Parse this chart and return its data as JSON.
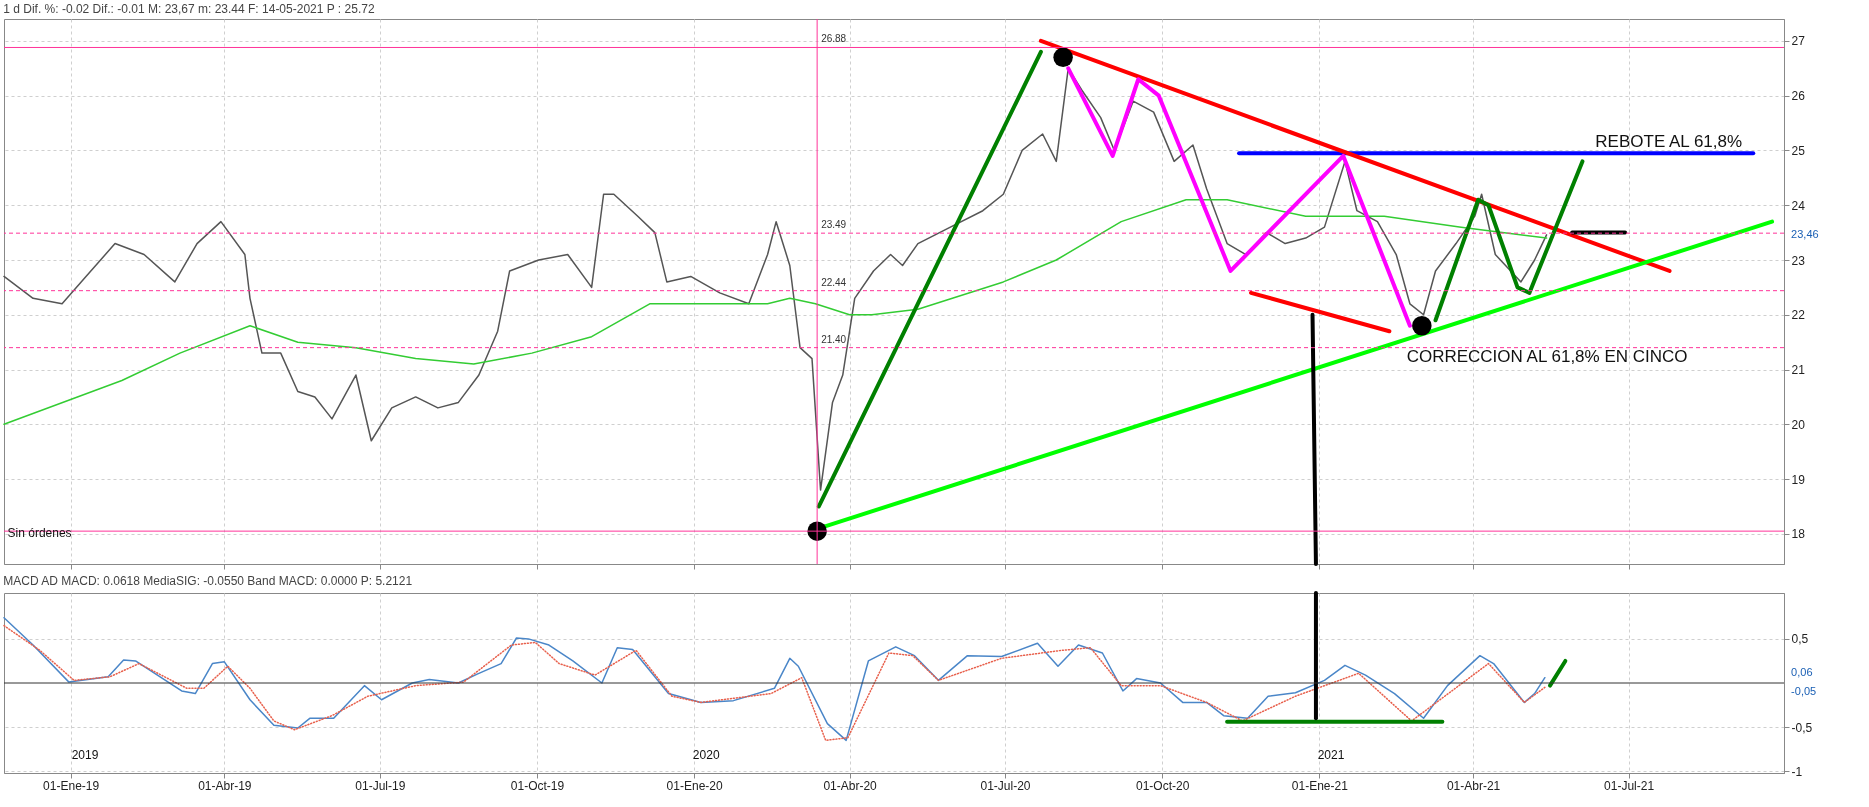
{
  "chart_data": [
    {
      "type": "line",
      "title": "1 d Dif. %: -0.02 Dif.: -0.01 M: 23,67 m: 23.44 F: 14-05-2021 P : 25.72",
      "xlim": [
        "2018-11-23",
        "2021-09-30"
      ],
      "xticks": [
        "2019-01-01",
        "2019-04-01",
        "2019-07-01",
        "2019-10-01",
        "2020-01-01",
        "2020-04-01",
        "2020-07-01",
        "2020-10-01",
        "2021-01-01",
        "2021-04-01",
        "2021-07-01"
      ],
      "ylim": [
        17.45,
        27.4
      ],
      "yticks": [
        18,
        19,
        20,
        21,
        22,
        23,
        24,
        25,
        26,
        27
      ],
      "grid": true,
      "tick_labels": "y",
      "series": [
        {
          "color": "#555555",
          "x": [
            "2018-11-23",
            "2018-12-10",
            "2018-12-27",
            "2019-01-10",
            "2019-01-27",
            "2019-02-13",
            "2019-03-03",
            "2019-03-16",
            "2019-03-30",
            "2019-04-13",
            "2019-04-16",
            "2019-04-23",
            "2019-05-04",
            "2019-05-14",
            "2019-05-24",
            "2019-06-03",
            "2019-06-17",
            "2019-06-26",
            "2019-07-08",
            "2019-07-22",
            "2019-08-04",
            "2019-08-16",
            "2019-08-28",
            "2019-09-08",
            "2019-09-15",
            "2019-10-02",
            "2019-10-19",
            "2019-11-02",
            "2019-11-09",
            "2019-11-15",
            "2019-11-29",
            "2019-12-09",
            "2019-12-16",
            "2019-12-30",
            "2020-01-16",
            "2020-02-02",
            "2020-02-13",
            "2020-02-18",
            "2020-02-26",
            "2020-03-03",
            "2020-03-10",
            "2020-03-15",
            "2020-03-22",
            "2020-03-28",
            "2020-04-04",
            "2020-04-15",
            "2020-04-25",
            "2020-05-02",
            "2020-05-11",
            "2020-05-30",
            "2020-06-18",
            "2020-06-30",
            "2020-07-11",
            "2020-07-23",
            "2020-07-31",
            "2020-08-07",
            "2020-08-15",
            "2020-08-26",
            "2020-09-03",
            "2020-09-14",
            "2020-09-26",
            "2020-10-08",
            "2020-10-19",
            "2020-10-27",
            "2020-11-08",
            "2020-11-19",
            "2020-12-01",
            "2020-12-12",
            "2020-12-24",
            "2021-01-04",
            "2021-01-16",
            "2021-01-23",
            "2021-02-04",
            "2021-02-15",
            "2021-02-23",
            "2021-03-03",
            "2021-03-10",
            "2021-03-22",
            "2021-04-02",
            "2021-04-06",
            "2021-04-14",
            "2021-04-29",
            "2021-05-07",
            "2021-05-14"
          ],
          "values": [
            22.7,
            22.3,
            22.2,
            22.7,
            23.3,
            23.1,
            22.6,
            23.3,
            23.7,
            23.1,
            22.3,
            21.3,
            21.3,
            20.6,
            20.5,
            20.1,
            20.9,
            19.7,
            20.3,
            20.5,
            20.3,
            20.4,
            20.9,
            21.7,
            22.8,
            23.0,
            23.1,
            22.5,
            24.2,
            24.2,
            23.8,
            23.5,
            22.6,
            22.7,
            22.4,
            22.2,
            23.1,
            23.7,
            22.9,
            21.4,
            21.2,
            18.8,
            20.4,
            20.9,
            22.3,
            22.8,
            23.1,
            22.9,
            23.3,
            23.6,
            23.9,
            24.2,
            25.0,
            25.3,
            24.8,
            26.5,
            26.1,
            25.6,
            25.0,
            25.9,
            25.7,
            24.8,
            25.1,
            24.3,
            23.3,
            23.1,
            23.5,
            23.3,
            23.4,
            23.6,
            24.8,
            23.9,
            23.7,
            23.1,
            22.2,
            22.0,
            22.8,
            23.3,
            23.8,
            24.2,
            23.1,
            22.6,
            23.0,
            23.46
          ]
        },
        {
          "color": "#33cc33",
          "x": [
            "2018-11-23",
            "2019-01-31",
            "2019-03-06",
            "2019-04-16",
            "2019-05-14",
            "2019-06-17",
            "2019-07-22",
            "2019-08-25",
            "2019-09-28",
            "2019-11-02",
            "2019-12-06",
            "2020-01-09",
            "2020-02-13",
            "2020-02-26",
            "2020-03-12",
            "2020-04-01",
            "2020-04-14",
            "2020-05-11",
            "2020-06-30",
            "2020-07-31",
            "2020-09-07",
            "2020-10-15",
            "2020-11-08",
            "2020-12-24",
            "2021-02-08",
            "2021-03-25",
            "2021-05-14"
          ],
          "values": [
            20.0,
            20.8,
            21.3,
            21.8,
            21.5,
            21.4,
            21.2,
            21.1,
            21.3,
            21.6,
            22.2,
            22.2,
            22.2,
            22.3,
            22.2,
            22.0,
            22.0,
            22.1,
            22.6,
            23.0,
            23.7,
            24.1,
            24.1,
            23.8,
            23.8,
            23.6,
            23.4
          ]
        },
        {
          "color": "#0000ff",
          "x": [
            "2020-11-15",
            "2021-09-12"
          ],
          "values": [
            24.95,
            24.95
          ]
        },
        {
          "color": "#ff0000",
          "x": [
            "2020-07-22",
            "2021-07-25"
          ],
          "values": [
            27.0,
            22.8
          ]
        },
        {
          "color": "#00ff00",
          "x": [
            "2020-03-14",
            "2021-09-23"
          ],
          "values": [
            18.1,
            23.7
          ]
        },
        {
          "color": "#008000",
          "x": [
            "2020-03-14",
            "2020-07-22"
          ],
          "values": [
            18.5,
            26.8
          ]
        },
        {
          "color": "#ff00ff",
          "x": [
            "2020-08-07",
            "2020-09-02",
            "2020-09-17",
            "2020-09-29",
            "2020-11-10",
            "2021-01-15",
            "2021-02-23"
          ],
          "values": [
            26.5,
            24.9,
            26.3,
            26.0,
            22.8,
            24.9,
            21.8
          ]
        },
        {
          "color": "#008000",
          "x": [
            "2021-03-10",
            "2021-04-04",
            "2021-04-10",
            "2021-04-27",
            "2021-05-04",
            "2021-06-04"
          ],
          "values": [
            21.9,
            24.1,
            24.0,
            22.5,
            22.4,
            24.8
          ]
        },
        {
          "color": "#ff0000",
          "x": [
            "2020-11-22",
            "2021-02-11"
          ],
          "values": [
            22.4,
            21.7
          ]
        },
        {
          "color": "#000000",
          "x": [
            "2021-06-29",
            "2021-05-29"
          ],
          "values": [
            23.5,
            23.5
          ]
        },
        {
          "color": "#000000",
          "x": [
            "2020-12-28",
            "2020-12-30"
          ],
          "values": [
            22.0,
            17.45
          ]
        },
        {
          "type": "scatter",
          "marker": "circle",
          "color": "#000000",
          "x": [
            "2020-03-13",
            "2020-08-04",
            "2021-03-02"
          ],
          "values": [
            18.05,
            26.7,
            21.8
          ]
        }
      ],
      "ref_lines": [
        {
          "axis": "y",
          "value": 26.88,
          "label": "26.88",
          "color": "#ff3399",
          "line_style": "solid"
        },
        {
          "axis": "y",
          "value": 23.49,
          "label": "23.49",
          "color": "#ff3399",
          "line_style": "dashed"
        },
        {
          "axis": "y",
          "value": 22.44,
          "label": "22.44",
          "color": "#ff3399",
          "line_style": "dashed"
        },
        {
          "axis": "y",
          "value": 21.4,
          "label": "21.40",
          "color": "#ff3399",
          "line_style": "dashed"
        },
        {
          "axis": "y",
          "value": 18.05,
          "label": null,
          "color": "#ff3399",
          "line_style": "solid"
        },
        {
          "axis": "x",
          "value": "2020-03-13",
          "label": null,
          "color": "#ff3399",
          "line_style": "solid"
        }
      ],
      "annotations": [
        "REBOTE AL 61,8%",
        "CORRECCION AL 61,8% EN CINCO",
        "Sin órdenes",
        "23,46"
      ]
    },
    {
      "type": "line",
      "title": "MACD AD MACD: 0.0618 MediaSIG: -0.0550 Band MACD: 0.0000 P: 5.2121",
      "xlim": [
        "2018-11-23",
        "2021-09-30"
      ],
      "xticks": [
        {
          "value": "2019-01-01",
          "label": "01-Ene-19"
        },
        {
          "value": "2019-04-01",
          "label": "01-Abr-19"
        },
        {
          "value": "2019-07-01",
          "label": "01-Jul-19"
        },
        {
          "value": "2019-10-01",
          "label": "01-Oct-19"
        },
        {
          "value": "2020-01-01",
          "label": "01-Ene-20"
        },
        {
          "value": "2020-04-01",
          "label": "01-Abr-20"
        },
        {
          "value": "2020-07-01",
          "label": "01-Jul-20"
        },
        {
          "value": "2020-10-01",
          "label": "01-Oct-20"
        },
        {
          "value": "2021-01-01",
          "label": "01-Ene-21"
        },
        {
          "value": "2021-04-01",
          "label": "01-Abr-21"
        },
        {
          "value": "2021-07-01",
          "label": "01-Jul-21"
        }
      ],
      "ylim": [
        -1.02,
        1.02
      ],
      "yticks": [
        {
          "value": 0.5,
          "label": "0,5"
        },
        {
          "value": -0.5,
          "label": "-0,5"
        },
        {
          "value": -1,
          "label": "-1"
        }
      ],
      "grid": true,
      "series": [
        {
          "color": "#4a86c8",
          "x": [
            "2018-11-23",
            "2018-12-10",
            "2018-12-31",
            "2019-01-23",
            "2019-02-01",
            "2019-02-08",
            "2019-03-07",
            "2019-03-15",
            "2019-03-25",
            "2019-04-01",
            "2019-04-16",
            "2019-04-30",
            "2019-05-14",
            "2019-05-21",
            "2019-06-04",
            "2019-06-22",
            "2019-07-02",
            "2019-07-20",
            "2019-07-30",
            "2019-08-16",
            "2019-08-27",
            "2019-09-10",
            "2019-09-19",
            "2019-09-26",
            "2019-10-08",
            "2019-10-22",
            "2019-11-08",
            "2019-11-17",
            "2019-11-26",
            "2019-12-17",
            "2020-01-05",
            "2020-01-24",
            "2020-02-17",
            "2020-02-26",
            "2020-03-02",
            "2020-03-19",
            "2020-03-30",
            "2020-04-12",
            "2020-04-28",
            "2020-05-09",
            "2020-05-23",
            "2020-06-09",
            "2020-06-29",
            "2020-07-20",
            "2020-08-01",
            "2020-08-13",
            "2020-08-27",
            "2020-09-08",
            "2020-09-16",
            "2020-09-30",
            "2020-10-13",
            "2020-10-27",
            "2020-11-06",
            "2020-11-20",
            "2020-12-02",
            "2020-12-18",
            "2021-01-04",
            "2021-01-16",
            "2021-01-28",
            "2021-02-14",
            "2021-03-03",
            "2021-03-17",
            "2021-04-05",
            "2021-04-13",
            "2021-05-01",
            "2021-05-07",
            "2021-05-13"
          ],
          "values": [
            0.74,
            0.43,
            0.01,
            0.07,
            0.26,
            0.25,
            -0.09,
            -0.12,
            0.22,
            0.24,
            -0.19,
            -0.48,
            -0.51,
            -0.4,
            -0.4,
            -0.03,
            -0.19,
            0.0,
            0.04,
            0.0,
            0.1,
            0.22,
            0.51,
            0.5,
            0.43,
            0.25,
            0.0,
            0.4,
            0.38,
            -0.12,
            -0.22,
            -0.2,
            -0.06,
            0.28,
            0.19,
            -0.46,
            -0.65,
            0.25,
            0.41,
            0.31,
            0.03,
            0.31,
            0.3,
            0.45,
            0.19,
            0.43,
            0.34,
            -0.09,
            0.05,
            0.0,
            -0.22,
            -0.22,
            -0.37,
            -0.4,
            -0.15,
            -0.11,
            0.03,
            0.2,
            0.09,
            -0.12,
            -0.4,
            -0.03,
            0.31,
            0.22,
            -0.22,
            -0.12,
            0.06
          ]
        },
        {
          "color": "#e8604c",
          "line_style": "dotted",
          "x": [
            "2018-11-23",
            "2018-12-14",
            "2019-01-03",
            "2019-01-24",
            "2019-02-10",
            "2019-03-10",
            "2019-03-20",
            "2019-04-03",
            "2019-04-16",
            "2019-04-30",
            "2019-05-12",
            "2019-06-03",
            "2019-06-24",
            "2019-07-22",
            "2019-08-19",
            "2019-09-16",
            "2019-09-30",
            "2019-10-14",
            "2019-11-04",
            "2019-11-28",
            "2019-12-19",
            "2020-01-05",
            "2020-02-15",
            "2020-03-04",
            "2020-03-18",
            "2020-03-31",
            "2020-04-24",
            "2020-05-08",
            "2020-05-23",
            "2020-06-29",
            "2020-08-03",
            "2020-08-20",
            "2020-09-07",
            "2020-09-30",
            "2020-10-27",
            "2020-11-17",
            "2020-12-18",
            "2021-01-24",
            "2021-02-24",
            "2021-04-10",
            "2021-05-01",
            "2021-05-13"
          ],
          "values": [
            0.65,
            0.37,
            0.03,
            0.07,
            0.22,
            -0.06,
            -0.06,
            0.19,
            -0.06,
            -0.43,
            -0.53,
            -0.37,
            -0.15,
            -0.03,
            0.01,
            0.43,
            0.46,
            0.22,
            0.09,
            0.37,
            -0.15,
            -0.22,
            -0.12,
            0.06,
            -0.65,
            -0.62,
            0.34,
            0.31,
            0.03,
            0.28,
            0.37,
            0.4,
            -0.03,
            -0.03,
            -0.22,
            -0.43,
            -0.15,
            0.11,
            -0.43,
            0.22,
            -0.22,
            -0.05
          ]
        },
        {
          "color": "#008000",
          "x": [
            "2020-11-08",
            "2021-03-14"
          ],
          "values": [
            -0.44,
            -0.44
          ]
        },
        {
          "color": "#008000",
          "x": [
            "2021-05-16",
            "2021-05-25"
          ],
          "values": [
            -0.03,
            0.25
          ]
        },
        {
          "color": "#000000",
          "x": [
            "2020-12-30",
            "2020-12-30"
          ],
          "values": [
            1.02,
            -0.4
          ]
        }
      ],
      "ref_lines": [
        {
          "axis": "y",
          "value": 0,
          "label": null,
          "color": "#333333",
          "line_style": "solid"
        }
      ],
      "annotations": [
        "2019",
        "2020",
        "2021",
        "0,06",
        "-0,05"
      ]
    }
  ]
}
